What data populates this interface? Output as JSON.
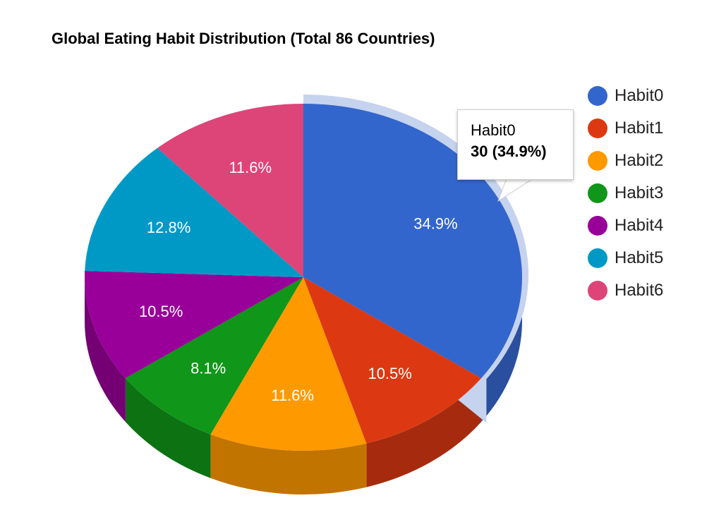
{
  "chart_data": {
    "type": "pie",
    "title": "Global Eating Habit Distribution (Total 86 Countries)",
    "total": 86,
    "slices": [
      {
        "name": "Habit0",
        "value": 30,
        "label": "34.9%",
        "color": "#3366cc",
        "side_color": "#2a4f9e"
      },
      {
        "name": "Habit1",
        "value": 9,
        "label": "10.5%",
        "color": "#dc3912",
        "side_color": "#a62b0e"
      },
      {
        "name": "Habit2",
        "value": 10,
        "label": "11.6%",
        "color": "#ff9900",
        "side_color": "#c27400"
      },
      {
        "name": "Habit3",
        "value": 7,
        "label": "8.1%",
        "color": "#109618",
        "side_color": "#0c7212"
      },
      {
        "name": "Habit4",
        "value": 9,
        "label": "10.5%",
        "color": "#990099",
        "side_color": "#740074"
      },
      {
        "name": "Habit5",
        "value": 11,
        "label": "12.8%",
        "color": "#0099c6",
        "side_color": "#007496"
      },
      {
        "name": "Habit6",
        "value": 10,
        "label": "11.6%",
        "color": "#dd4477",
        "side_color": "#a8345a"
      }
    ],
    "legend_position": "right",
    "tooltip": {
      "name": "Habit0",
      "value_text": "30 (34.9%)"
    },
    "highlight_color": "#c5d3ef"
  }
}
